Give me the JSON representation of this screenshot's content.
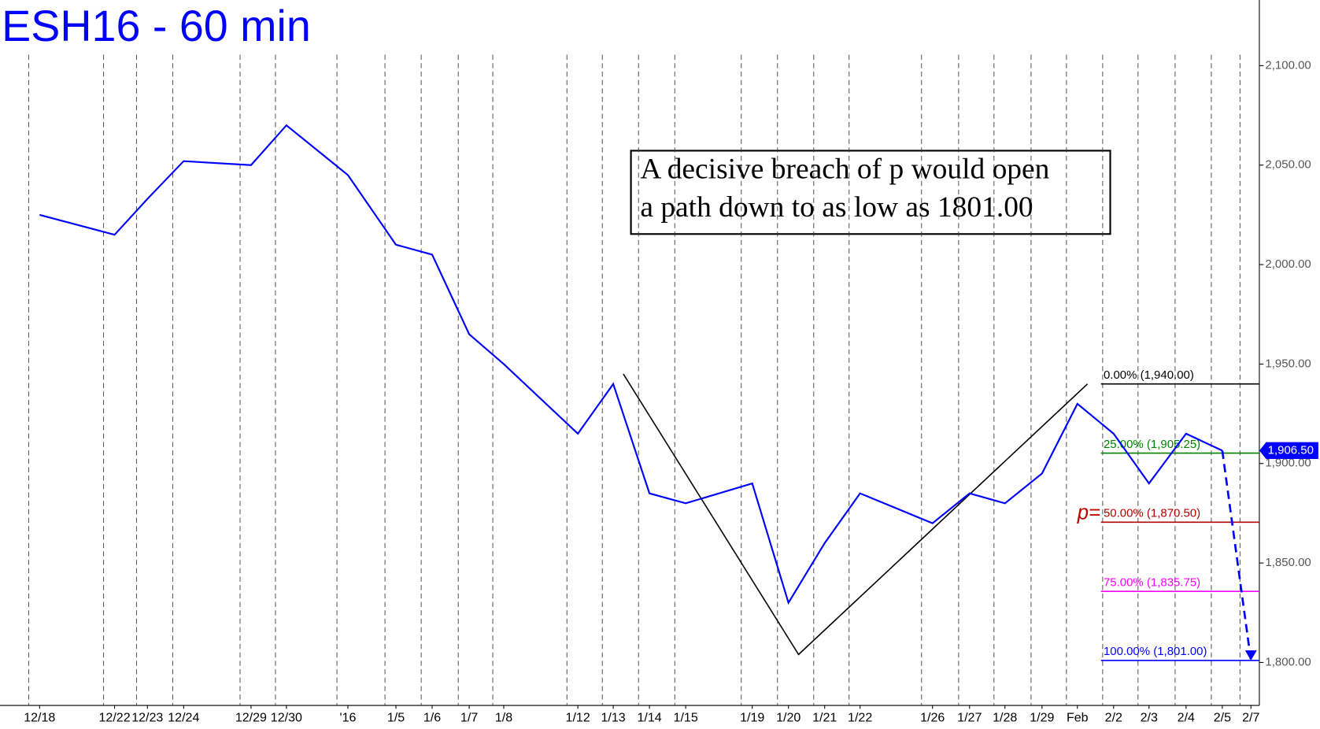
{
  "chart_data": {
    "type": "line",
    "title": "ESH16 - 60 min",
    "categories": [
      "12/18",
      "12/22",
      "12/23",
      "12/24",
      "12/29",
      "12/30",
      "'16",
      "1/5",
      "1/6",
      "1/7",
      "1/8",
      "1/12",
      "1/13",
      "1/14",
      "1/15",
      "1/19",
      "1/20",
      "1/21",
      "1/22",
      "1/26",
      "1/27",
      "1/28",
      "1/29",
      "Feb",
      "2/2",
      "2/3",
      "2/4",
      "2/5",
      "2/7"
    ],
    "series": [
      {
        "color": "#0000ff",
        "values": [
          2025,
          2015,
          2033,
          2052,
          2050,
          2070,
          2045,
          2010,
          2005,
          1965,
          1950,
          1915,
          1940,
          1885,
          1880,
          1890,
          1830,
          1860,
          1885,
          1870,
          1885,
          1880,
          1895,
          1930,
          1915,
          1890,
          1915,
          1906.5,
          null
        ]
      },
      {
        "color": "#0000ff",
        "dashed": true,
        "values": [
          null,
          null,
          null,
          null,
          null,
          null,
          null,
          null,
          null,
          null,
          null,
          null,
          null,
          null,
          null,
          null,
          null,
          null,
          null,
          null,
          null,
          null,
          null,
          null,
          null,
          null,
          null,
          1906.5,
          1801
        ]
      }
    ],
    "pattern": {
      "color": "#000000",
      "categories": [
        "1/13",
        "1/20",
        "Feb"
      ],
      "values": [
        1945,
        1804,
        1940
      ]
    },
    "levels": [
      {
        "label": "0.00% (1,940.00)",
        "value": 1940,
        "color": "#000000"
      },
      {
        "label": "25.00% (1,905.25)",
        "value": 1905.25,
        "color": "#008000"
      },
      {
        "label": "50.00% (1,870.50)",
        "value": 1870.5,
        "color": "#b00000"
      },
      {
        "label": "75.00% (1,835.75)",
        "value": 1835.75,
        "color": "#ff00ff"
      },
      {
        "label": "100.00% (1,801.00)",
        "value": 1801,
        "color": "#0000ff"
      }
    ],
    "p_label": "p=",
    "last_price": {
      "value": 1906.5,
      "label": "1,906.50"
    },
    "annotation": [
      "A decisive breach of p would open",
      "a path down to as low as 1801.00"
    ],
    "ylim": [
      1778.4,
      2133
    ],
    "yticks": [
      {
        "value": 1800,
        "label": "1,800.00"
      },
      {
        "value": 1850,
        "label": "1,850.00"
      },
      {
        "value": 1900,
        "label": "1,900.00"
      },
      {
        "value": 1950,
        "label": "1,950.00"
      },
      {
        "value": 2000,
        "label": "2,000.00"
      },
      {
        "value": 2050,
        "label": "2,050.00"
      },
      {
        "value": 2100,
        "label": "2,100.00"
      }
    ]
  }
}
